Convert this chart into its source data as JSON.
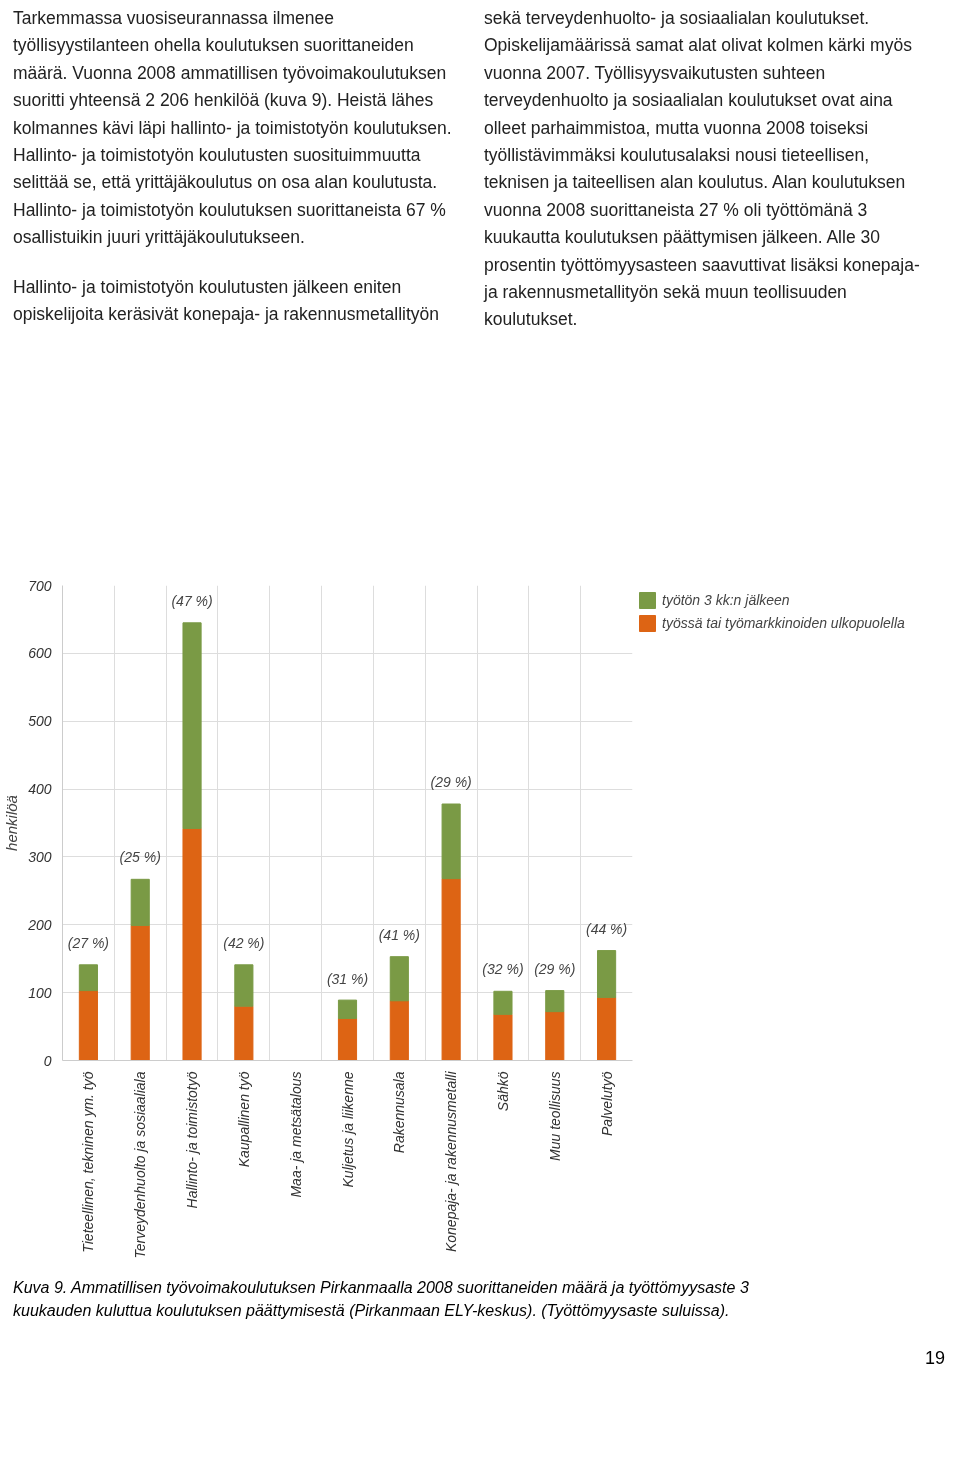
{
  "chart_data": {
    "type": "bar",
    "stacked": true,
    "ylabel": "henkilöä",
    "categories": [
      "Tieteellinen, tekninen ym. työ",
      "Terveydenhuolto ja sosiaaliala",
      "Hallinto- ja toimistotyö",
      "Kaupallinen työ",
      "Maa- ja metsätalous",
      "Kuljetus ja liikenne",
      "Rakennusala",
      "Konepaja- ja rakennusmetalli",
      "Sähkö",
      "Muu teollisuus",
      "Palvelutyö"
    ],
    "series": [
      {
        "name": "työssä tai työmarkkinoiden ulkopuolella",
        "color": "#dd6414",
        "values": [
          103,
          199,
          342,
          80,
          0,
          62,
          88,
          268,
          68,
          72,
          93
        ]
      },
      {
        "name": "työtön 3 kk:n jälkeen",
        "color": "#7a9a45",
        "values": [
          38,
          68,
          303,
          61,
          0,
          27,
          65,
          110,
          34,
          31,
          69
        ]
      }
    ],
    "ylim": [
      0,
      700
    ],
    "yticks": [
      0,
      100,
      200,
      300,
      400,
      500,
      600,
      700
    ],
    "grid": true,
    "legend": "top right",
    "annotations": [
      "Tarkemmassa vuosiseurannassa ilmenee työllisyystilanteen ohella koulutuksen suorittaneiden määrä. Vuonna 2008 ammatillisen työvoimakoulutuksen suoritti yhteensä 2 206 henkilöä (kuva 9). Heistä lähes kolmannes kävi läpi hallinto- ja toimistotyön koulutuksen. Hallinto- ja toimistotyön koulutusten suosituimmuutta selittää se, että yrittäjäkoulutus on osa alan koulutusta. Hallinto- ja toimistotyön koulutuksen suorittaneista 67 % osallistuikin juuri yrittäjäkoulutukseen.",
      "Hallinto- ja toimistotyön koulutusten jälkeen eniten opiskelijoita keräsivät konepaja- ja rakennusmetallityön sekä terveydenhuolto- ja sosiaalialan koulutukset. Opiskelijamäärissä samat alat olivat kolmen kärki myös vuonna 2007. Työllisyysvaikutusten suhteen terveydenhuolto ja sosiaalialan koulutukset ovat aina olleet parhaimmistoa, mutta vuonna 2008 toiseksi työllistävimmäksi koulutusalaksi nousi tieteellisen, teknisen ja taiteellisen alan koulutus. Alan koulutuksen vuonna 2008 suorittaneista 27 % oli työttömänä 3 kuukautta koulutuksen päättymisen jälkeen. Alle 30 prosentin työttömyysasteen saavuttivat lisäksi konepaja- ja rakennusmetallityön sekä muun teollisuuden koulutukset.",
      {
        "text": "(27 %)",
        "x": "Tieteellinen, tekninen ym. työ",
        "y": 141
      },
      {
        "text": "(25 %)",
        "x": "Terveydenhuolto ja sosiaaliala",
        "y": 267
      },
      {
        "text": "(47 %)",
        "x": "Hallinto- ja toimistotyö",
        "y": 645
      },
      {
        "text": "(42 %)",
        "x": "Kaupallinen työ",
        "y": 141
      },
      {
        "text": "(31 %)",
        "x": "Kuljetus ja liikenne",
        "y": 88
      },
      {
        "text": "(41 %)",
        "x": "Rakennusala",
        "y": 153
      },
      {
        "text": "(29 %)",
        "x": "Konepaja- ja rakennusmetalli",
        "y": 378
      },
      {
        "text": "(32 %)",
        "x": "Sähkö",
        "y": 102
      },
      {
        "text": "(29 %)",
        "x": "Muu teollisuus",
        "y": 103
      },
      {
        "text": "(44 %)",
        "x": "Palvelutyö",
        "y": 162
      },
      "Kuva 9. Ammatillisen työvoimakoulutuksen Pirkanmaalla 2008 suorittaneiden määrä ja työttömyysaste 3 kuukauden kuluttua koulutuksen päättymisestä (Pirkanmaan ELY-keskus). (Työttömyysaste suluissa).",
      "19"
    ]
  }
}
